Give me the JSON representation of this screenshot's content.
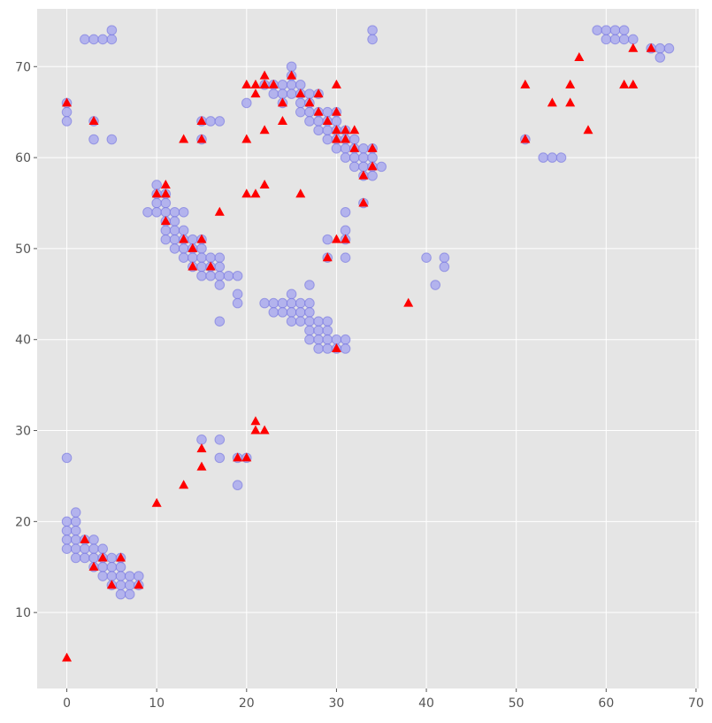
{
  "chart_data": {
    "type": "scatter",
    "title": "",
    "xlabel": "",
    "ylabel": "",
    "xlim": [
      -3.3,
      70.3
    ],
    "ylim": [
      1.65,
      76.35
    ],
    "x_ticks": [
      0,
      10,
      20,
      30,
      40,
      50,
      60,
      70
    ],
    "y_ticks": [
      10,
      20,
      30,
      40,
      50,
      60,
      70
    ],
    "grid": true,
    "legend": "none",
    "colors": {
      "background": "#e5e5e5",
      "grid": "#ffffff",
      "circle_fill": "#aaaaee",
      "circle_edge": "#6a6adf",
      "triangle": "#ff0000"
    },
    "series": [
      {
        "marker": "circle",
        "points": [
          [
            2,
            73
          ],
          [
            3,
            73
          ],
          [
            4,
            73
          ],
          [
            5,
            73
          ],
          [
            5,
            74
          ],
          [
            0,
            66
          ],
          [
            0,
            65
          ],
          [
            0,
            64
          ],
          [
            3,
            64
          ],
          [
            3,
            62
          ],
          [
            5,
            62
          ],
          [
            0,
            27
          ],
          [
            0,
            20
          ],
          [
            1,
            20
          ],
          [
            1,
            21
          ],
          [
            0,
            19
          ],
          [
            1,
            19
          ],
          [
            0,
            18
          ],
          [
            1,
            18
          ],
          [
            2,
            18
          ],
          [
            3,
            18
          ],
          [
            0,
            17
          ],
          [
            1,
            17
          ],
          [
            2,
            17
          ],
          [
            3,
            17
          ],
          [
            4,
            17
          ],
          [
            1,
            16
          ],
          [
            2,
            16
          ],
          [
            3,
            16
          ],
          [
            4,
            16
          ],
          [
            5,
            16
          ],
          [
            6,
            16
          ],
          [
            3,
            15
          ],
          [
            4,
            15
          ],
          [
            5,
            15
          ],
          [
            6,
            15
          ],
          [
            4,
            14
          ],
          [
            5,
            14
          ],
          [
            6,
            14
          ],
          [
            7,
            14
          ],
          [
            8,
            14
          ],
          [
            5,
            13
          ],
          [
            6,
            13
          ],
          [
            7,
            13
          ],
          [
            8,
            13
          ],
          [
            6,
            12
          ],
          [
            7,
            12
          ],
          [
            9,
            54
          ],
          [
            10,
            57
          ],
          [
            10,
            56
          ],
          [
            10,
            55
          ],
          [
            10,
            54
          ],
          [
            11,
            56
          ],
          [
            11,
            55
          ],
          [
            11,
            54
          ],
          [
            11,
            53
          ],
          [
            11,
            52
          ],
          [
            11,
            51
          ],
          [
            12,
            54
          ],
          [
            12,
            53
          ],
          [
            12,
            52
          ],
          [
            12,
            51
          ],
          [
            12,
            50
          ],
          [
            13,
            54
          ],
          [
            13,
            52
          ],
          [
            13,
            51
          ],
          [
            13,
            50
          ],
          [
            13,
            49
          ],
          [
            14,
            51
          ],
          [
            14,
            50
          ],
          [
            14,
            49
          ],
          [
            14,
            48
          ],
          [
            15,
            51
          ],
          [
            15,
            50
          ],
          [
            15,
            49
          ],
          [
            15,
            48
          ],
          [
            15,
            47
          ],
          [
            16,
            49
          ],
          [
            16,
            48
          ],
          [
            16,
            47
          ],
          [
            17,
            49
          ],
          [
            17,
            48
          ],
          [
            17,
            47
          ],
          [
            17,
            46
          ],
          [
            18,
            47
          ],
          [
            19,
            47
          ],
          [
            19,
            45
          ],
          [
            19,
            44
          ],
          [
            17,
            42
          ],
          [
            15,
            64
          ],
          [
            16,
            64
          ],
          [
            17,
            64
          ],
          [
            15,
            62
          ],
          [
            15,
            29
          ],
          [
            17,
            29
          ],
          [
            17,
            27
          ],
          [
            19,
            27
          ],
          [
            20,
            27
          ],
          [
            19,
            24
          ],
          [
            20,
            66
          ],
          [
            22,
            68
          ],
          [
            23,
            68
          ],
          [
            24,
            68
          ],
          [
            25,
            68
          ],
          [
            26,
            68
          ],
          [
            25,
            70
          ],
          [
            25,
            69
          ],
          [
            23,
            67
          ],
          [
            24,
            67
          ],
          [
            25,
            67
          ],
          [
            26,
            67
          ],
          [
            27,
            67
          ],
          [
            28,
            67
          ],
          [
            24,
            66
          ],
          [
            26,
            66
          ],
          [
            27,
            66
          ],
          [
            26,
            65
          ],
          [
            27,
            65
          ],
          [
            28,
            65
          ],
          [
            29,
            65
          ],
          [
            30,
            65
          ],
          [
            27,
            64
          ],
          [
            28,
            64
          ],
          [
            29,
            64
          ],
          [
            30,
            64
          ],
          [
            28,
            63
          ],
          [
            29,
            63
          ],
          [
            30,
            63
          ],
          [
            31,
            63
          ],
          [
            29,
            62
          ],
          [
            30,
            62
          ],
          [
            31,
            62
          ],
          [
            32,
            62
          ],
          [
            30,
            61
          ],
          [
            31,
            61
          ],
          [
            32,
            61
          ],
          [
            33,
            61
          ],
          [
            34,
            61
          ],
          [
            31,
            60
          ],
          [
            32,
            60
          ],
          [
            33,
            60
          ],
          [
            34,
            60
          ],
          [
            32,
            59
          ],
          [
            33,
            59
          ],
          [
            34,
            59
          ],
          [
            35,
            59
          ],
          [
            33,
            58
          ],
          [
            34,
            58
          ],
          [
            33,
            55
          ],
          [
            34,
            74
          ],
          [
            34,
            73
          ],
          [
            31,
            54
          ],
          [
            31,
            52
          ],
          [
            29,
            51
          ],
          [
            31,
            51
          ],
          [
            29,
            49
          ],
          [
            31,
            49
          ],
          [
            27,
            46
          ],
          [
            25,
            45
          ],
          [
            22,
            44
          ],
          [
            23,
            44
          ],
          [
            24,
            44
          ],
          [
            25,
            44
          ],
          [
            26,
            44
          ],
          [
            27,
            44
          ],
          [
            23,
            43
          ],
          [
            24,
            43
          ],
          [
            25,
            43
          ],
          [
            26,
            43
          ],
          [
            27,
            43
          ],
          [
            25,
            42
          ],
          [
            26,
            42
          ],
          [
            27,
            42
          ],
          [
            28,
            42
          ],
          [
            29,
            42
          ],
          [
            27,
            41
          ],
          [
            28,
            41
          ],
          [
            29,
            41
          ],
          [
            27,
            40
          ],
          [
            28,
            40
          ],
          [
            29,
            40
          ],
          [
            30,
            40
          ],
          [
            31,
            40
          ],
          [
            28,
            39
          ],
          [
            29,
            39
          ],
          [
            30,
            39
          ],
          [
            31,
            39
          ],
          [
            40,
            49
          ],
          [
            42,
            49
          ],
          [
            42,
            48
          ],
          [
            41,
            46
          ],
          [
            51,
            62
          ],
          [
            53,
            60
          ],
          [
            54,
            60
          ],
          [
            55,
            60
          ],
          [
            59,
            74
          ],
          [
            60,
            74
          ],
          [
            61,
            74
          ],
          [
            62,
            74
          ],
          [
            60,
            73
          ],
          [
            61,
            73
          ],
          [
            62,
            73
          ],
          [
            63,
            73
          ],
          [
            65,
            72
          ],
          [
            66,
            72
          ],
          [
            67,
            72
          ],
          [
            66,
            71
          ]
        ]
      },
      {
        "marker": "triangle",
        "points": [
          [
            0,
            66
          ],
          [
            3,
            64
          ],
          [
            0,
            5
          ],
          [
            2,
            18
          ],
          [
            4,
            16
          ],
          [
            6,
            16
          ],
          [
            3,
            15
          ],
          [
            5,
            13
          ],
          [
            8,
            13
          ],
          [
            10,
            22
          ],
          [
            13,
            24
          ],
          [
            15,
            26
          ],
          [
            15,
            28
          ],
          [
            19,
            27
          ],
          [
            20,
            27
          ],
          [
            21,
            31
          ],
          [
            21,
            30
          ],
          [
            22,
            30
          ],
          [
            10,
            56
          ],
          [
            11,
            57
          ],
          [
            11,
            56
          ],
          [
            11,
            53
          ],
          [
            13,
            51
          ],
          [
            14,
            50
          ],
          [
            14,
            48
          ],
          [
            15,
            51
          ],
          [
            16,
            48
          ],
          [
            17,
            54
          ],
          [
            13,
            62
          ],
          [
            15,
            64
          ],
          [
            15,
            62
          ],
          [
            20,
            68
          ],
          [
            21,
            68
          ],
          [
            22,
            69
          ],
          [
            22,
            68
          ],
          [
            23,
            68
          ],
          [
            21,
            67
          ],
          [
            24,
            66
          ],
          [
            24,
            64
          ],
          [
            22,
            63
          ],
          [
            20,
            62
          ],
          [
            20,
            56
          ],
          [
            21,
            56
          ],
          [
            22,
            57
          ],
          [
            26,
            56
          ],
          [
            25,
            69
          ],
          [
            26,
            67
          ],
          [
            27,
            66
          ],
          [
            28,
            67
          ],
          [
            28,
            65
          ],
          [
            29,
            64
          ],
          [
            30,
            68
          ],
          [
            30,
            65
          ],
          [
            30,
            63
          ],
          [
            31,
            63
          ],
          [
            32,
            63
          ],
          [
            30,
            62
          ],
          [
            31,
            62
          ],
          [
            32,
            61
          ],
          [
            34,
            61
          ],
          [
            34,
            59
          ],
          [
            33,
            58
          ],
          [
            33,
            55
          ],
          [
            30,
            51
          ],
          [
            31,
            51
          ],
          [
            29,
            49
          ],
          [
            30,
            39
          ],
          [
            38,
            44
          ],
          [
            51,
            68
          ],
          [
            51,
            62
          ],
          [
            54,
            66
          ],
          [
            56,
            68
          ],
          [
            56,
            66
          ],
          [
            57,
            71
          ],
          [
            58,
            63
          ],
          [
            62,
            68
          ],
          [
            63,
            68
          ],
          [
            63,
            72
          ],
          [
            65,
            72
          ]
        ]
      }
    ]
  }
}
